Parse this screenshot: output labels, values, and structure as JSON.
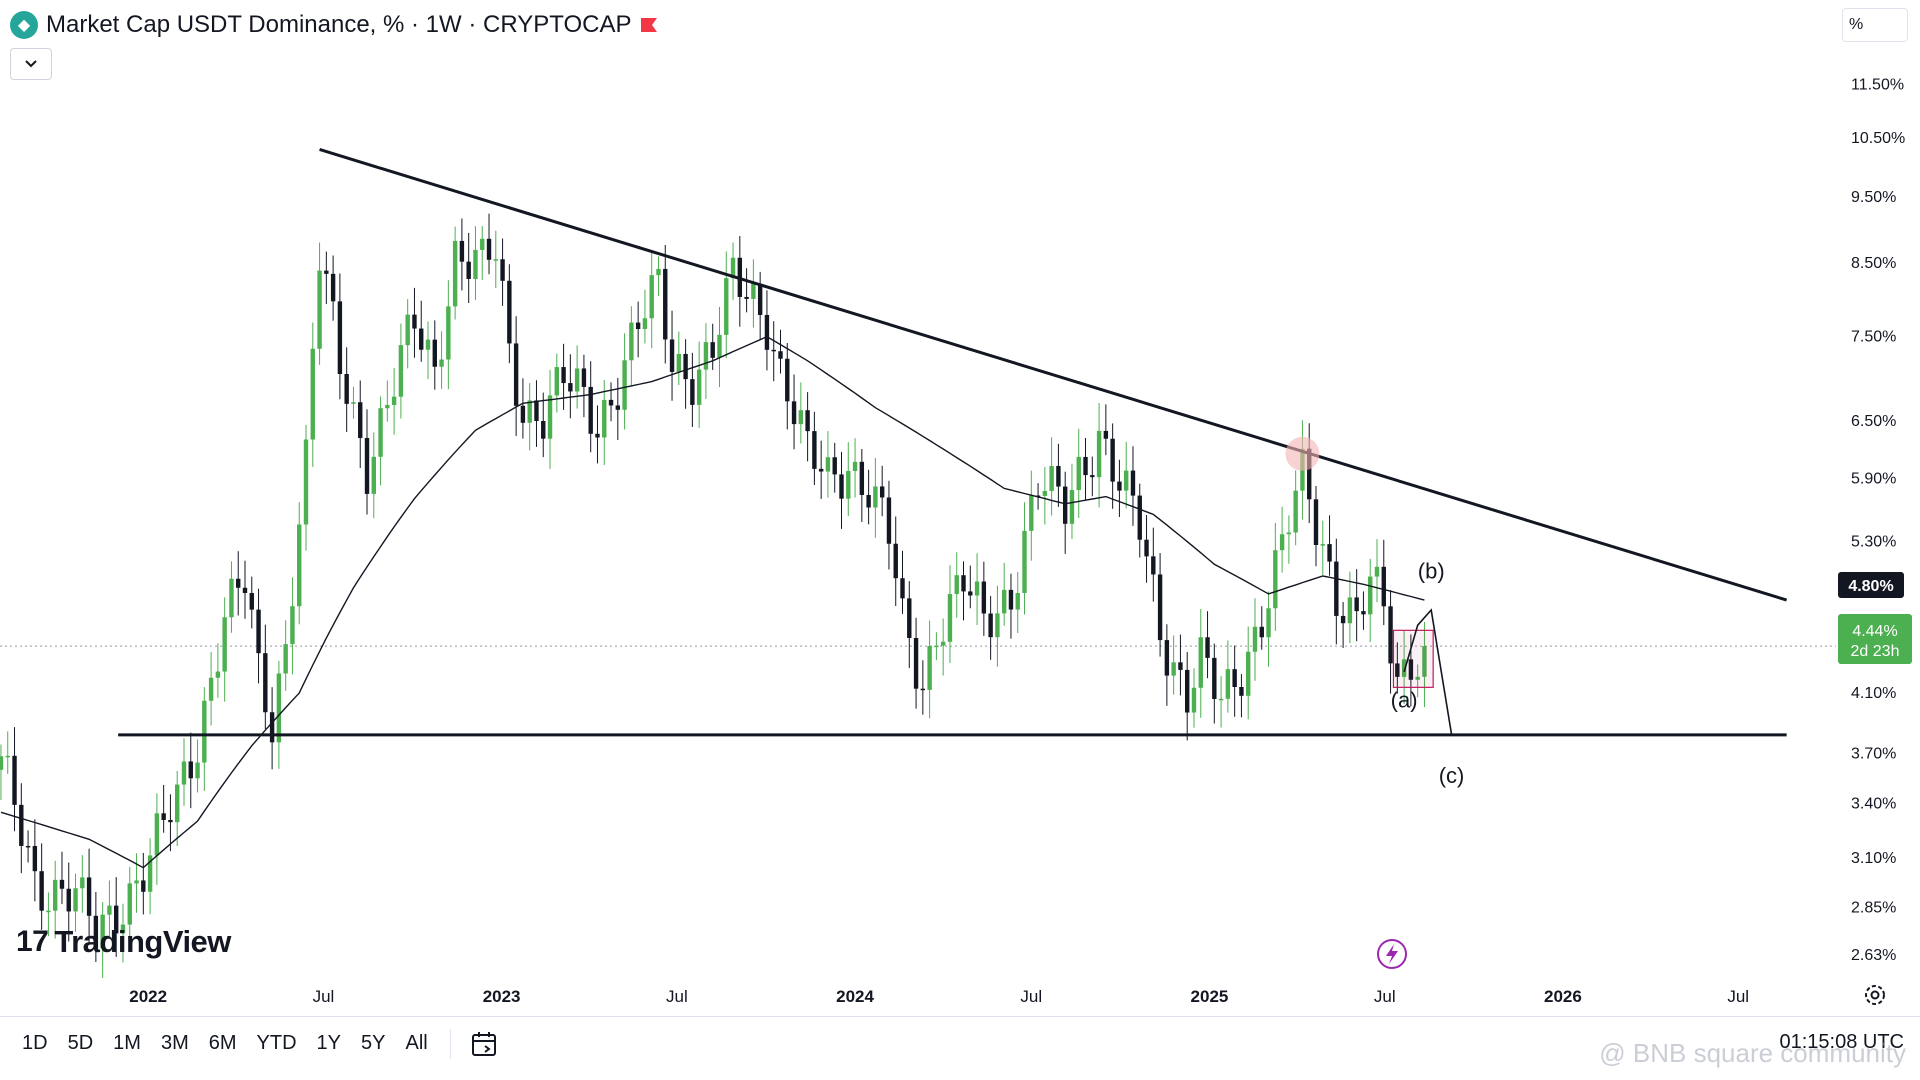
{
  "header": {
    "title": "Market Cap USDT Dominance, % · 1W · CRYPTOCAP",
    "scale_box": "%"
  },
  "colors": {
    "up": "#4caf50",
    "down": "#131722",
    "price_badge": "#4caf50",
    "trendline": "#131722",
    "highlight_circle": "#f4b4b4",
    "highlight_box": "#c2185b"
  },
  "chart_data": {
    "type": "candlestick",
    "timeframe": "1W",
    "y_scale": "log",
    "y_ticks": [
      "11.50%",
      "10.50%",
      "9.50%",
      "8.50%",
      "7.50%",
      "6.50%",
      "5.90%",
      "5.30%",
      "4.10%",
      "3.70%",
      "3.40%",
      "3.10%",
      "2.85%",
      "2.63%"
    ],
    "y_tick_values": [
      11.5,
      10.5,
      9.5,
      8.5,
      7.5,
      6.5,
      5.9,
      5.3,
      4.1,
      3.7,
      3.4,
      3.1,
      2.85,
      2.63
    ],
    "y_range": [
      2.5,
      12.4
    ],
    "x_ticks": [
      {
        "label": "2022",
        "date": "2022-01-01",
        "bold": true
      },
      {
        "label": "Jul",
        "date": "2022-07-01",
        "bold": false
      },
      {
        "label": "2023",
        "date": "2023-01-01",
        "bold": true
      },
      {
        "label": "Jul",
        "date": "2023-07-01",
        "bold": false
      },
      {
        "label": "2024",
        "date": "2024-01-01",
        "bold": true
      },
      {
        "label": "Jul",
        "date": "2024-07-01",
        "bold": false
      },
      {
        "label": "2025",
        "date": "2025-01-01",
        "bold": true
      },
      {
        "label": "Jul",
        "date": "2025-07-01",
        "bold": false
      },
      {
        "label": "2026",
        "date": "2026-01-01",
        "bold": true
      },
      {
        "label": "Jul",
        "date": "2026-07-01",
        "bold": false
      }
    ],
    "x_range": [
      "2021-08-01",
      "2026-10-10"
    ],
    "anchors": [
      [
        "2021-08-02",
        3.6
      ],
      [
        "2021-09-06",
        3.0
      ],
      [
        "2021-10-18",
        2.9
      ],
      [
        "2021-11-08",
        2.7
      ],
      [
        "2021-12-06",
        2.9
      ],
      [
        "2022-01-03",
        3.1
      ],
      [
        "2022-01-31",
        3.4
      ],
      [
        "2022-02-21",
        3.8
      ],
      [
        "2022-03-21",
        4.7
      ],
      [
        "2022-04-11",
        4.9
      ],
      [
        "2022-04-25",
        4.2
      ],
      [
        "2022-05-09",
        3.9
      ],
      [
        "2022-05-23",
        4.5
      ],
      [
        "2022-06-13",
        6.1
      ],
      [
        "2022-06-27",
        8.5
      ],
      [
        "2022-07-18",
        7.1
      ],
      [
        "2022-08-15",
        6.1
      ],
      [
        "2022-09-05",
        6.7
      ],
      [
        "2022-10-03",
        7.6
      ],
      [
        "2022-10-24",
        7.1
      ],
      [
        "2022-11-14",
        8.7
      ],
      [
        "2022-12-12",
        8.4
      ],
      [
        "2022-12-26",
        8.6
      ],
      [
        "2023-01-09",
        7.3
      ],
      [
        "2023-01-23",
        6.7
      ],
      [
        "2023-02-13",
        6.6
      ],
      [
        "2023-03-06",
        6.9
      ],
      [
        "2023-03-20",
        6.8
      ],
      [
        "2023-04-10",
        6.5
      ],
      [
        "2023-05-01",
        7.0
      ],
      [
        "2023-05-22",
        7.6
      ],
      [
        "2023-06-12",
        8.1
      ],
      [
        "2023-06-26",
        7.2
      ],
      [
        "2023-07-17",
        7.1
      ],
      [
        "2023-08-07",
        7.3
      ],
      [
        "2023-08-28",
        8.2
      ],
      [
        "2023-09-18",
        8.0
      ],
      [
        "2023-10-02",
        7.8
      ],
      [
        "2023-10-16",
        7.1
      ],
      [
        "2023-10-30",
        6.6
      ],
      [
        "2023-11-13",
        6.1
      ],
      [
        "2023-12-04",
        5.9
      ],
      [
        "2023-12-25",
        6.1
      ],
      [
        "2024-01-15",
        5.8
      ],
      [
        "2024-02-05",
        5.3
      ],
      [
        "2024-02-19",
        4.6
      ],
      [
        "2024-03-11",
        4.2
      ],
      [
        "2024-03-25",
        4.6
      ],
      [
        "2024-04-22",
        4.9
      ],
      [
        "2024-05-13",
        4.6
      ],
      [
        "2024-06-10",
        4.9
      ],
      [
        "2024-07-08",
        5.8
      ],
      [
        "2024-08-05",
        5.6
      ],
      [
        "2024-08-19",
        6.0
      ],
      [
        "2024-09-09",
        6.4
      ],
      [
        "2024-09-30",
        5.8
      ],
      [
        "2024-10-21",
        5.4
      ],
      [
        "2024-11-11",
        4.6
      ],
      [
        "2024-12-09",
        4.1
      ],
      [
        "2024-12-23",
        4.3
      ],
      [
        "2025-01-13",
        4.0
      ],
      [
        "2025-02-03",
        4.3
      ],
      [
        "2025-02-24",
        4.7
      ],
      [
        "2025-03-17",
        5.2
      ],
      [
        "2025-04-07",
        5.9
      ],
      [
        "2025-04-21",
        5.5
      ],
      [
        "2025-05-12",
        4.9
      ],
      [
        "2025-06-02",
        4.6
      ],
      [
        "2025-06-16",
        4.9
      ],
      [
        "2025-06-30",
        4.7
      ],
      [
        "2025-07-14",
        4.2
      ],
      [
        "2025-07-28",
        4.4
      ],
      [
        "2025-08-11",
        4.44
      ]
    ],
    "ma_anchors": [
      [
        "2021-08-02",
        3.35
      ],
      [
        "2021-11-01",
        3.2
      ],
      [
        "2021-12-27",
        3.05
      ],
      [
        "2022-02-21",
        3.3
      ],
      [
        "2022-04-18",
        3.75
      ],
      [
        "2022-06-06",
        4.1
      ],
      [
        "2022-08-01",
        4.9
      ],
      [
        "2022-10-03",
        5.7
      ],
      [
        "2022-12-05",
        6.4
      ],
      [
        "2023-01-23",
        6.7
      ],
      [
        "2023-04-03",
        6.8
      ],
      [
        "2023-06-05",
        6.95
      ],
      [
        "2023-08-07",
        7.2
      ],
      [
        "2023-10-02",
        7.5
      ],
      [
        "2023-11-13",
        7.2
      ],
      [
        "2024-01-22",
        6.65
      ],
      [
        "2024-04-01",
        6.2
      ],
      [
        "2024-06-03",
        5.8
      ],
      [
        "2024-08-05",
        5.65
      ],
      [
        "2024-09-16",
        5.72
      ],
      [
        "2024-11-04",
        5.55
      ],
      [
        "2025-01-06",
        5.1
      ],
      [
        "2025-03-03",
        4.85
      ],
      [
        "2025-04-28",
        5.0
      ],
      [
        "2025-06-09",
        4.93
      ],
      [
        "2025-08-11",
        4.8
      ]
    ],
    "annotations": {
      "descending_trendline": {
        "start": [
          "2022-06-27",
          10.3
        ],
        "end": [
          "2026-08-20",
          4.8
        ]
      },
      "horizontal_support": {
        "value": 3.82,
        "from": "2021-12-01",
        "to": "2026-08-20"
      },
      "wave_path": [
        [
          "2025-07-21",
          4.25
        ],
        [
          "2025-08-04",
          4.6
        ],
        [
          "2025-08-18",
          4.72
        ],
        [
          "2025-09-08",
          3.82
        ]
      ],
      "wave_labels": [
        {
          "text": "(a)",
          "date": "2025-07-21",
          "value": 4.0
        },
        {
          "text": "(b)",
          "date": "2025-08-18",
          "value": 4.98
        },
        {
          "text": "(c)",
          "date": "2025-09-08",
          "value": 3.52
        }
      ],
      "highlight_box": {
        "from": "2025-07-10",
        "to": "2025-08-20",
        "top": 4.56,
        "bottom": 4.14
      },
      "highlight_circle": {
        "date": "2025-04-07",
        "value": 6.15
      }
    }
  },
  "price_scale": {
    "trendline_badge": "4.80%",
    "current_price": "4.44%",
    "countdown": "2d 23h"
  },
  "branding": {
    "logo_mark": "17",
    "logo_text": "TradingView",
    "watermark": "@ BNB square community"
  },
  "bottom_bar": {
    "ranges": [
      "1D",
      "5D",
      "1M",
      "3M",
      "6M",
      "YTD",
      "1Y",
      "5Y",
      "All"
    ],
    "clock": "01:15:08 UTC"
  }
}
